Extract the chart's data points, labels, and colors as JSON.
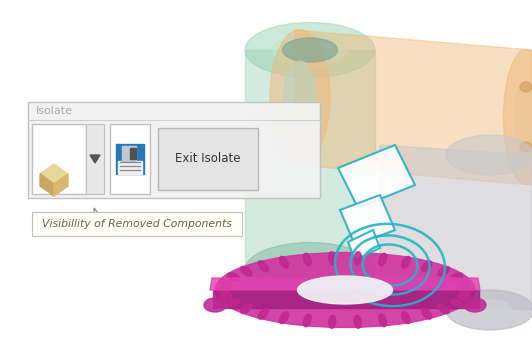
{
  "bg_color": "#ffffff",
  "isolate_label": "Isolate",
  "tooltip_text": "Visibillity of Removed Components",
  "exit_button_text": "Exit Isolate",
  "cyan_color": "#20b8cc",
  "orange_color": "#f0b070",
  "green_color": "#90ccb0",
  "magenta_color": "#cc3399",
  "gray_color": "#c8c8cc",
  "panel_bg": "#f0f0f0",
  "panel_border": "#c0c0c0",
  "tooltip_bg": "#fffef8"
}
